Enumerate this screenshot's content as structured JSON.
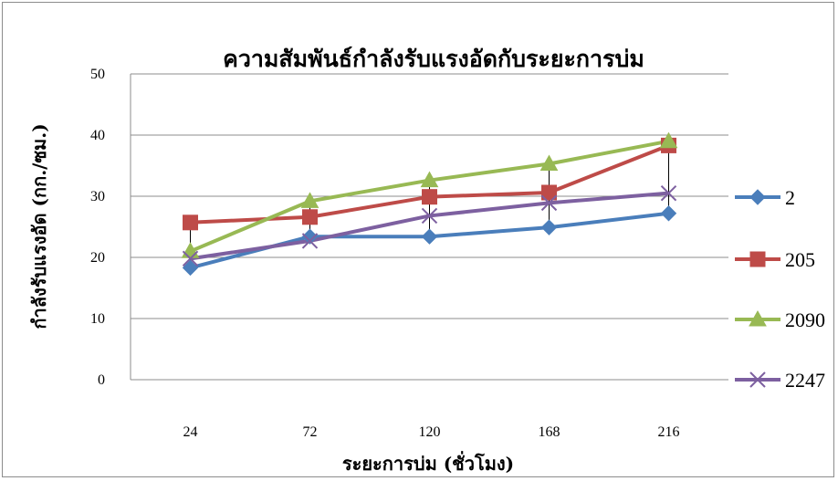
{
  "chart_data": {
    "type": "line",
    "title": "ความสัมพันธ์กำลังรับแรงอัดกับระยะการบ่ม",
    "xlabel": "ระยะการบ่ม (ชั่วโมง)",
    "ylabel": "กำลังรับแรงอัด (กก./ซม.)",
    "categories": [
      "24",
      "72",
      "120",
      "168",
      "216"
    ],
    "ylim": [
      0,
      50
    ],
    "yticks": [
      "0",
      "10",
      "20",
      "30",
      "40",
      "50"
    ],
    "grid": true,
    "legend_position": "right",
    "error_bars": {
      "categories": [
        "24",
        "72",
        "120",
        "168",
        "216"
      ],
      "high": [
        25.8,
        29.5,
        32.8,
        35.5,
        39.2
      ],
      "low": [
        18.2,
        22.6,
        23.2,
        24.8,
        27.0
      ]
    },
    "series": [
      {
        "name": "2",
        "marker": "diamond",
        "color": "#4a7ebb",
        "values": [
          18.3,
          23.4,
          23.4,
          24.9,
          27.2
        ]
      },
      {
        "name": "205",
        "marker": "square",
        "color": "#be4b48",
        "values": [
          25.7,
          26.6,
          29.9,
          30.6,
          38.3
        ]
      },
      {
        "name": "2090",
        "marker": "triangle",
        "color": "#98b954",
        "values": [
          21.0,
          29.2,
          32.6,
          35.3,
          39.0
        ]
      },
      {
        "name": "2247",
        "marker": "x",
        "color": "#7d60a0",
        "values": [
          19.8,
          22.7,
          26.8,
          28.9,
          30.5
        ]
      }
    ]
  }
}
